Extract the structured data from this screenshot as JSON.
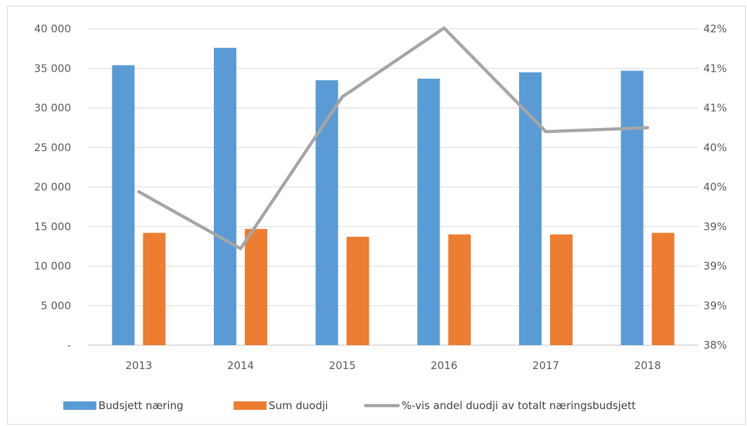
{
  "chart_data": {
    "type": "bar",
    "categories": [
      "2013",
      "2014",
      "2015",
      "2016",
      "2017",
      "2018"
    ],
    "series": [
      {
        "name": "Budsjett næring",
        "type": "bar",
        "axis": "left",
        "color": "#5b9bd5",
        "values": [
          35400,
          37600,
          33500,
          33700,
          34500,
          34700
        ]
      },
      {
        "name": "Sum duodji",
        "type": "bar",
        "axis": "left",
        "color": "#ed7d31",
        "values": [
          14200,
          14700,
          13700,
          14000,
          14000,
          14200
        ]
      },
      {
        "name": "%-vis andel duodji av totalt næringsbudsjett",
        "type": "line",
        "axis": "right",
        "color": "#a5a5a5",
        "values": [
          39.94,
          39.22,
          41.14,
          42.01,
          40.7,
          40.75
        ]
      }
    ],
    "y_left": {
      "ylim": [
        0,
        40000
      ],
      "ticks": [
        0,
        5000,
        10000,
        15000,
        20000,
        25000,
        30000,
        35000,
        40000
      ],
      "tick_labels": [
        "-",
        "5 000",
        "10 000",
        "15 000",
        "20 000",
        "25 000",
        "30 000",
        "35 000",
        "40 000"
      ]
    },
    "y_right": {
      "ylim": [
        38,
        42
      ],
      "ticks": [
        38,
        38.5,
        39,
        39.5,
        40,
        40.5,
        41,
        41.5,
        42
      ],
      "tick_labels": [
        "38%",
        "39%",
        "39%",
        "39%",
        "40%",
        "40%",
        "41%",
        "41%",
        "42%"
      ]
    },
    "grid": true,
    "legend_position": "bottom"
  }
}
